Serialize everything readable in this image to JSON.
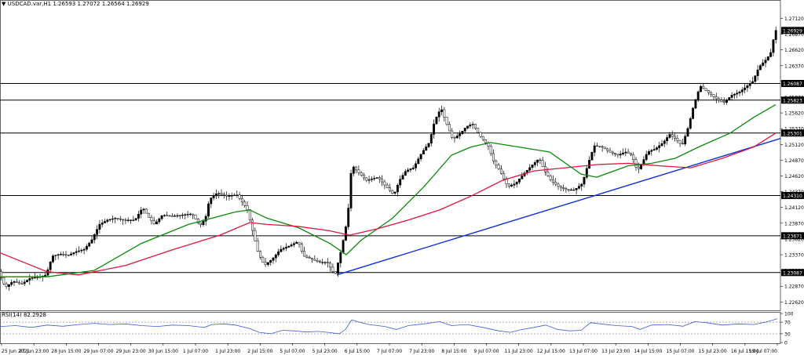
{
  "header": {
    "arrow": "▼",
    "symbol": "USDCAD.var,H1",
    "ohlc": "1.26593 1.27072 1.26564 1.26929"
  },
  "rsi_header": "RSI(14) 82.2928",
  "colors": {
    "bull": "#000000",
    "ma_fast": "#0a8a0a",
    "ma_slow": "#e0143c",
    "trendline": "#1030e0",
    "rsi": "#3b5bd6",
    "level": "#000000"
  },
  "chart_data": [
    {
      "type": "candlestick",
      "title": "USDCAD.var,H1",
      "ylim": [
        1.225,
        1.273
      ],
      "y_ticks": [
        1.2712,
        1.2687,
        1.2662,
        1.2637,
        1.2612,
        1.2587,
        1.2562,
        1.2537,
        1.2512,
        1.2487,
        1.2462,
        1.2437,
        1.2412,
        1.2387,
        1.2362,
        1.2337,
        1.2312,
        1.2287,
        1.2262
      ],
      "x_labels": [
        "25 Jun 2021",
        "27 Jun 23:00",
        "28 Jun 15:00",
        "29 Jun 07:00",
        "29 Jun 23:00",
        "30 Jun 15:00",
        "1 Jul 07:00",
        "1 Jul 23:00",
        "2 Jul 15:00",
        "5 Jul 07:00",
        "5 Jul 23:00",
        "6 Jul 15:00",
        "7 Jul 07:00",
        "7 Jul 23:00",
        "8 Jul 15:00",
        "9 Jul 07:00",
        "11 Jul 23:00",
        "12 Jul 15:00",
        "13 Jul 07:00",
        "13 Jul 23:00",
        "14 Jul 15:00",
        "15 Jul 07:00",
        "15 Jul 23:00",
        "16 Jul 15:00",
        "19 Jul 07:00"
      ],
      "horizontal_levels": [
        1.26087,
        1.25823,
        1.25301,
        1.2431,
        1.23671,
        1.23087
      ],
      "current_price": 1.26929,
      "price_series": [
        [
          0,
          1.2315
        ],
        [
          10,
          1.2285
        ],
        [
          20,
          1.2295
        ],
        [
          30,
          1.229
        ],
        [
          42,
          1.23
        ],
        [
          55,
          1.2302
        ],
        [
          62,
          1.2305
        ],
        [
          70,
          1.2335
        ],
        [
          80,
          1.2338
        ],
        [
          90,
          1.2336
        ],
        [
          100,
          1.2342
        ],
        [
          110,
          1.2345
        ],
        [
          120,
          1.236
        ],
        [
          130,
          1.2385
        ],
        [
          140,
          1.2392
        ],
        [
          150,
          1.2395
        ],
        [
          160,
          1.2392
        ],
        [
          175,
          1.2392
        ],
        [
          185,
          1.2412
        ],
        [
          193,
          1.2396
        ],
        [
          200,
          1.2385
        ],
        [
          210,
          1.24
        ],
        [
          222,
          1.2398
        ],
        [
          235,
          1.24
        ],
        [
          248,
          1.2402
        ],
        [
          258,
          1.2383
        ],
        [
          265,
          1.2395
        ],
        [
          270,
          1.2425
        ],
        [
          280,
          1.2435
        ],
        [
          292,
          1.243
        ],
        [
          305,
          1.2432
        ],
        [
          318,
          1.241
        ],
        [
          325,
          1.2375
        ],
        [
          332,
          1.234
        ],
        [
          340,
          1.232
        ],
        [
          350,
          1.233
        ],
        [
          360,
          1.2345
        ],
        [
          370,
          1.235
        ],
        [
          383,
          1.2358
        ],
        [
          390,
          1.2335
        ],
        [
          400,
          1.233
        ],
        [
          410,
          1.2325
        ],
        [
          420,
          1.2325
        ],
        [
          430,
          1.2305
        ],
        [
          437,
          1.234
        ],
        [
          443,
          1.2375
        ],
        [
          448,
          1.242
        ],
        [
          451,
          1.248
        ],
        [
          458,
          1.247
        ],
        [
          470,
          1.2455
        ],
        [
          485,
          1.246
        ],
        [
          495,
          1.2445
        ],
        [
          505,
          1.2432
        ],
        [
          512,
          1.2455
        ],
        [
          520,
          1.247
        ],
        [
          530,
          1.2475
        ],
        [
          540,
          1.2498
        ],
        [
          550,
          1.2515
        ],
        [
          557,
          1.255
        ],
        [
          565,
          1.257
        ],
        [
          572,
          1.2545
        ],
        [
          580,
          1.252
        ],
        [
          590,
          1.253
        ],
        [
          597,
          1.254
        ],
        [
          605,
          1.2545
        ],
        [
          615,
          1.2525
        ],
        [
          625,
          1.251
        ],
        [
          632,
          1.2485
        ],
        [
          640,
          1.247
        ],
        [
          650,
          1.2445
        ],
        [
          660,
          1.245
        ],
        [
          670,
          1.2465
        ],
        [
          680,
          1.2478
        ],
        [
          690,
          1.249
        ],
        [
          697,
          1.247
        ],
        [
          705,
          1.2455
        ],
        [
          715,
          1.2445
        ],
        [
          725,
          1.244
        ],
        [
          735,
          1.244
        ],
        [
          745,
          1.245
        ],
        [
          752,
          1.248
        ],
        [
          760,
          1.251
        ],
        [
          770,
          1.2508
        ],
        [
          780,
          1.25
        ],
        [
          790,
          1.2495
        ],
        [
          800,
          1.25
        ],
        [
          808,
          1.2495
        ],
        [
          815,
          1.247
        ],
        [
          820,
          1.248
        ],
        [
          828,
          1.25
        ],
        [
          838,
          1.2505
        ],
        [
          848,
          1.2515
        ],
        [
          856,
          1.2528
        ],
        [
          865,
          1.252
        ],
        [
          872,
          1.251
        ],
        [
          880,
          1.254
        ],
        [
          887,
          1.2575
        ],
        [
          895,
          1.2605
        ],
        [
          905,
          1.2595
        ],
        [
          915,
          1.2585
        ],
        [
          925,
          1.2578
        ],
        [
          935,
          1.259
        ],
        [
          945,
          1.2595
        ],
        [
          955,
          1.2605
        ],
        [
          962,
          1.2612
        ],
        [
          970,
          1.2635
        ],
        [
          980,
          1.2648
        ],
        [
          986,
          1.266
        ],
        [
          990,
          1.2693
        ]
      ]
    },
    {
      "type": "line",
      "title": "Moving averages",
      "series": [
        {
          "name": "",
          "color": "#0a8a0a",
          "values": [
            [
              0,
              1.2302
            ],
            [
              60,
              1.2302
            ],
            [
              120,
              1.2312
            ],
            [
              180,
              1.2355
            ],
            [
              240,
              1.2385
            ],
            [
              300,
              1.2405
            ],
            [
              318,
              1.2408
            ],
            [
              340,
              1.2395
            ],
            [
              380,
              1.238
            ],
            [
              420,
              1.2355
            ],
            [
              441,
              1.2337
            ],
            [
              460,
              1.236
            ],
            [
              500,
              1.2395
            ],
            [
              540,
              1.2445
            ],
            [
              575,
              1.2495
            ],
            [
              600,
              1.2508
            ],
            [
              625,
              1.2515
            ],
            [
              660,
              1.2508
            ],
            [
              700,
              1.25
            ],
            [
              740,
              1.2465
            ],
            [
              760,
              1.246
            ],
            [
              800,
              1.2478
            ],
            [
              830,
              1.2482
            ],
            [
              860,
              1.249
            ],
            [
              890,
              1.2508
            ],
            [
              930,
              1.253
            ],
            [
              960,
              1.2555
            ],
            [
              988,
              1.2575
            ]
          ]
        },
        {
          "name": "",
          "color": "#e0143c",
          "values": [
            [
              0,
              1.234
            ],
            [
              30,
              1.2325
            ],
            [
              60,
              1.231
            ],
            [
              100,
              1.2305
            ],
            [
              160,
              1.232
            ],
            [
              220,
              1.2345
            ],
            [
              280,
              1.2368
            ],
            [
              318,
              1.2388
            ],
            [
              340,
              1.2385
            ],
            [
              380,
              1.2382
            ],
            [
              420,
              1.2375
            ],
            [
              445,
              1.2368
            ],
            [
              480,
              1.2378
            ],
            [
              520,
              1.2392
            ],
            [
              560,
              1.2408
            ],
            [
              600,
              1.243
            ],
            [
              640,
              1.2455
            ],
            [
              680,
              1.247
            ],
            [
              720,
              1.2475
            ],
            [
              760,
              1.248
            ],
            [
              800,
              1.2482
            ],
            [
              840,
              1.2478
            ],
            [
              880,
              1.2475
            ],
            [
              920,
              1.249
            ],
            [
              960,
              1.2508
            ],
            [
              988,
              1.253
            ]
          ]
        }
      ]
    },
    {
      "type": "line",
      "title": "RSI(14)",
      "ylim": [
        0,
        100
      ],
      "y_ticks": [
        100,
        70,
        30,
        0
      ],
      "levels": [
        70,
        30
      ],
      "series": [
        {
          "name": "RSI(14)",
          "color": "#3b5bd6",
          "values": [
            [
              0,
              55
            ],
            [
              20,
              58
            ],
            [
              40,
              52
            ],
            [
              60,
              60
            ],
            [
              80,
              56
            ],
            [
              100,
              62
            ],
            [
              120,
              66
            ],
            [
              140,
              62
            ],
            [
              160,
              64
            ],
            [
              180,
              58
            ],
            [
              200,
              55
            ],
            [
              220,
              60
            ],
            [
              240,
              58
            ],
            [
              260,
              52
            ],
            [
              270,
              62
            ],
            [
              285,
              64
            ],
            [
              300,
              60
            ],
            [
              318,
              48
            ],
            [
              330,
              35
            ],
            [
              345,
              30
            ],
            [
              360,
              42
            ],
            [
              375,
              40
            ],
            [
              390,
              36
            ],
            [
              405,
              38
            ],
            [
              420,
              34
            ],
            [
              432,
              30
            ],
            [
              440,
              45
            ],
            [
              448,
              78
            ],
            [
              455,
              72
            ],
            [
              470,
              62
            ],
            [
              490,
              55
            ],
            [
              505,
              45
            ],
            [
              520,
              58
            ],
            [
              540,
              64
            ],
            [
              560,
              72
            ],
            [
              575,
              58
            ],
            [
              595,
              62
            ],
            [
              615,
              52
            ],
            [
              635,
              40
            ],
            [
              650,
              35
            ],
            [
              665,
              45
            ],
            [
              680,
              52
            ],
            [
              695,
              60
            ],
            [
              710,
              45
            ],
            [
              725,
              40
            ],
            [
              740,
              42
            ],
            [
              752,
              68
            ],
            [
              765,
              64
            ],
            [
              785,
              58
            ],
            [
              805,
              55
            ],
            [
              815,
              45
            ],
            [
              830,
              60
            ],
            [
              850,
              62
            ],
            [
              870,
              56
            ],
            [
              885,
              72
            ],
            [
              900,
              68
            ],
            [
              920,
              60
            ],
            [
              940,
              64
            ],
            [
              960,
              62
            ],
            [
              975,
              70
            ],
            [
              990,
              82
            ]
          ]
        }
      ]
    }
  ]
}
